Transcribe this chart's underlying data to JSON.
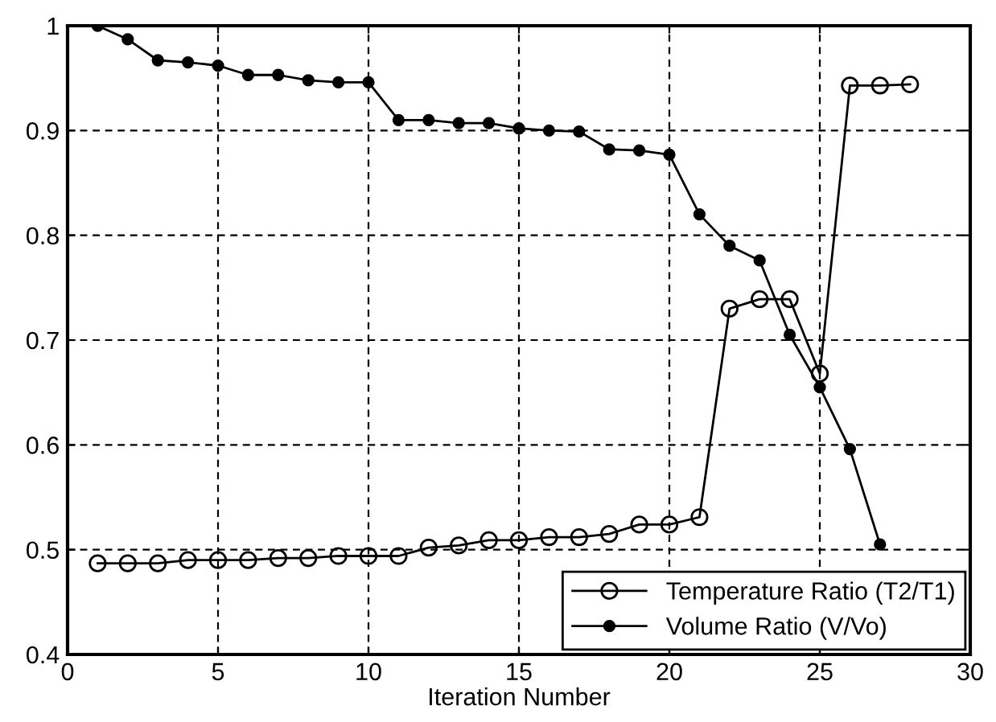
{
  "chart_data": {
    "type": "line",
    "xlabel": "Iteration Number",
    "x": [
      1,
      2,
      3,
      4,
      5,
      6,
      7,
      8,
      9,
      10,
      11,
      12,
      13,
      14,
      15,
      16,
      17,
      18,
      19,
      20,
      21,
      22,
      23,
      24,
      25,
      26,
      27,
      28
    ],
    "series": [
      {
        "name": "Temperature Ratio (T2/T1)",
        "color": "#000000",
        "marker": "circle",
        "values": [
          0.487,
          0.487,
          0.487,
          0.49,
          0.49,
          0.49,
          0.492,
          0.492,
          0.494,
          0.494,
          0.494,
          0.502,
          0.504,
          0.509,
          0.509,
          0.512,
          0.512,
          0.515,
          0.524,
          0.524,
          0.531,
          0.73,
          0.739,
          0.739,
          0.668,
          0.943,
          0.943,
          0.944
        ]
      },
      {
        "name": "Volume Ratio (V/Vo)",
        "color": "#000000",
        "marker": "dot",
        "values": [
          1.0,
          0.987,
          0.967,
          0.965,
          0.962,
          0.953,
          0.953,
          0.948,
          0.946,
          0.946,
          0.91,
          0.91,
          0.907,
          0.907,
          0.902,
          0.9,
          0.899,
          0.882,
          0.881,
          0.877,
          0.82,
          0.79,
          0.776,
          0.705,
          0.655,
          0.596,
          0.505,
          null
        ]
      }
    ],
    "xlim": [
      0,
      30
    ],
    "ylim": [
      0.4,
      1
    ],
    "xticks": [
      0,
      5,
      10,
      15,
      20,
      25,
      30
    ],
    "yticks": [
      0.4,
      0.5,
      0.6,
      0.7,
      0.8,
      0.9,
      1
    ],
    "grid": true,
    "legend": "bottom right",
    "line_style": "solid"
  }
}
